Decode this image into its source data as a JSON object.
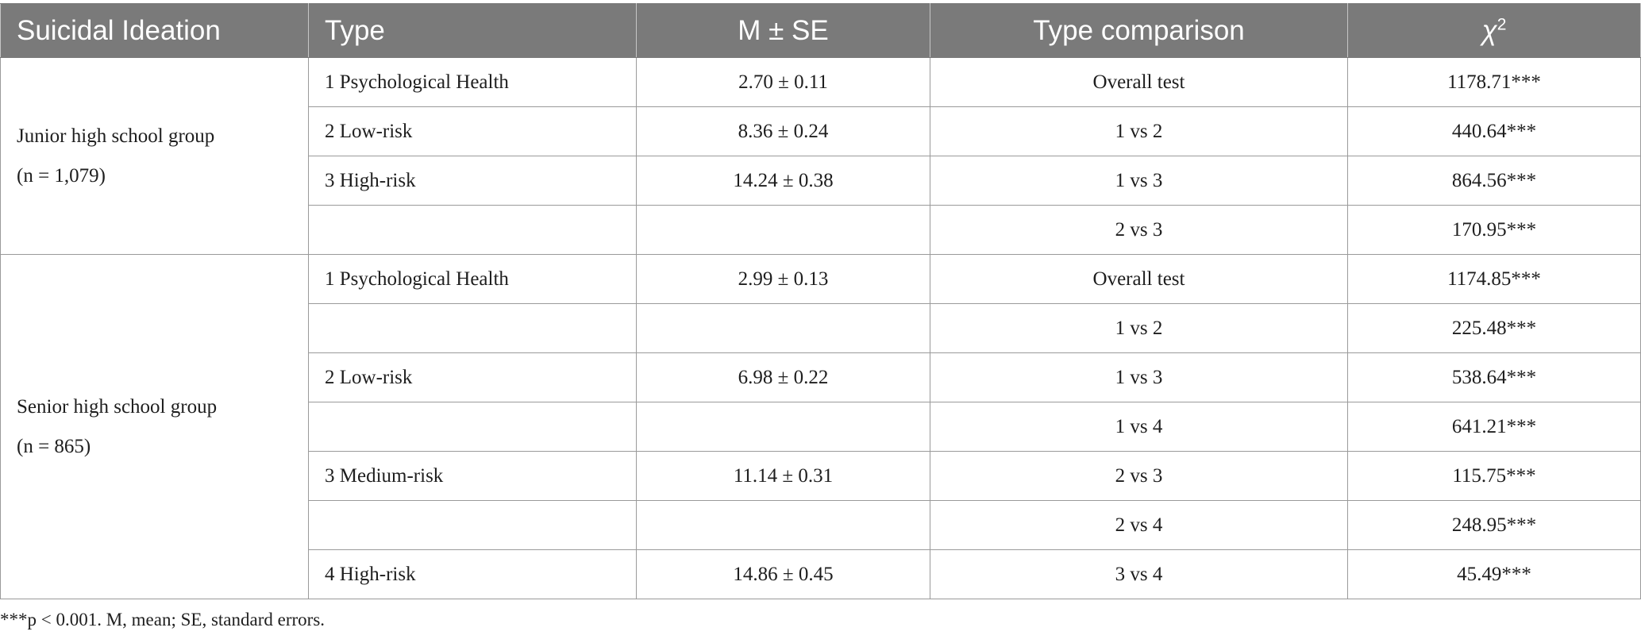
{
  "table": {
    "headers": {
      "suicidal_ideation": "Suicidal Ideation",
      "type": "Type",
      "mse": "M ± SE",
      "type_comparison": "Type comparison",
      "chi2": "χ",
      "chi2_sup": "2"
    },
    "junior": {
      "label": "Junior high school group",
      "n_text": "(n = 1,079)",
      "rows": [
        {
          "type": "1 Psychological Health",
          "mse": "2.70 ± 0.11",
          "comparison": "Overall test",
          "chi2": "1178.71***"
        },
        {
          "type": "2 Low-risk",
          "mse": "8.36 ± 0.24",
          "comparison": "1 vs 2",
          "chi2": "440.64***"
        },
        {
          "type": "3 High-risk",
          "mse": "14.24 ± 0.38",
          "comparison": "1 vs 3",
          "chi2": "864.56***"
        },
        {
          "type": "",
          "mse": "",
          "comparison": "2 vs 3",
          "chi2": "170.95***"
        }
      ]
    },
    "senior": {
      "label": "Senior high school group",
      "n_text": "(n = 865)",
      "rows": [
        {
          "type": "1 Psychological Health",
          "mse": "2.99 ± 0.13",
          "comparison": "Overall test",
          "chi2": "1174.85***"
        },
        {
          "type": "",
          "mse": "",
          "comparison": "1 vs 2",
          "chi2": "225.48***"
        },
        {
          "type": "2 Low-risk",
          "mse": "6.98 ± 0.22",
          "comparison": "1 vs 3",
          "chi2": "538.64***"
        },
        {
          "type": "",
          "mse": "",
          "comparison": "1 vs 4",
          "chi2": "641.21***"
        },
        {
          "type": "3 Medium-risk",
          "mse": "11.14 ± 0.31",
          "comparison": "2 vs 3",
          "chi2": "115.75***"
        },
        {
          "type": "",
          "mse": "",
          "comparison": "2 vs 4",
          "chi2": "248.95***"
        },
        {
          "type": "4 High-risk",
          "mse": "14.86 ± 0.45",
          "comparison": "3 vs 4",
          "chi2": "45.49***"
        }
      ]
    }
  },
  "footnote": "***p < 0.001. M, mean; SE, standard errors."
}
